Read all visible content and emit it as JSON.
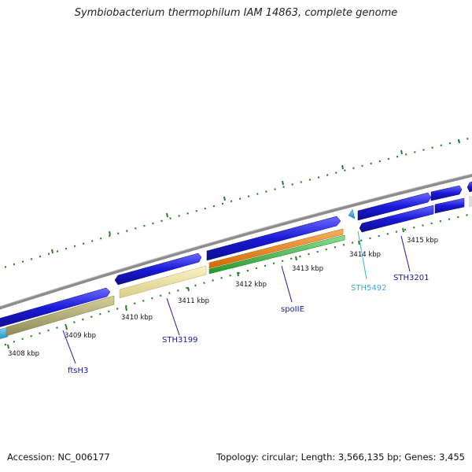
{
  "title": "Symbiobacterium thermophilum IAM 14863, complete genome",
  "accession": "Accession: NC_006177",
  "summary": "Topology: circular; Length: 3,566,135 bp; Genes: 3,455",
  "ticks": [
    {
      "text": "3408 kbp"
    },
    {
      "text": "3409 kbp"
    },
    {
      "text": "3410 kbp"
    },
    {
      "text": "3411 kbp"
    },
    {
      "text": "3412 kbp"
    },
    {
      "text": "3413 kbp"
    },
    {
      "text": "3414 kbp"
    },
    {
      "text": "3415 kbp"
    }
  ],
  "gene_labels": [
    {
      "text": "ftsH3",
      "color": "#1a1aa0"
    },
    {
      "text": "STH3199",
      "color": "#1a1aa0"
    },
    {
      "text": "spoIIE",
      "color": "#1a1aa0"
    },
    {
      "text": "STH5492",
      "color": "#3ab0d0"
    },
    {
      "text": "STH3201",
      "color": "#1a1aa0"
    }
  ],
  "colors": {
    "backbone": "#8c8c8c",
    "cds_blue": "#1a1ad8",
    "cds_cyan": "#2aaee0",
    "khaki": "#b8b27a",
    "pale_yellow": "#f0e6a2",
    "orange": "#f08a14",
    "green": "#3cb83c",
    "dots": "#2e7d2e"
  }
}
